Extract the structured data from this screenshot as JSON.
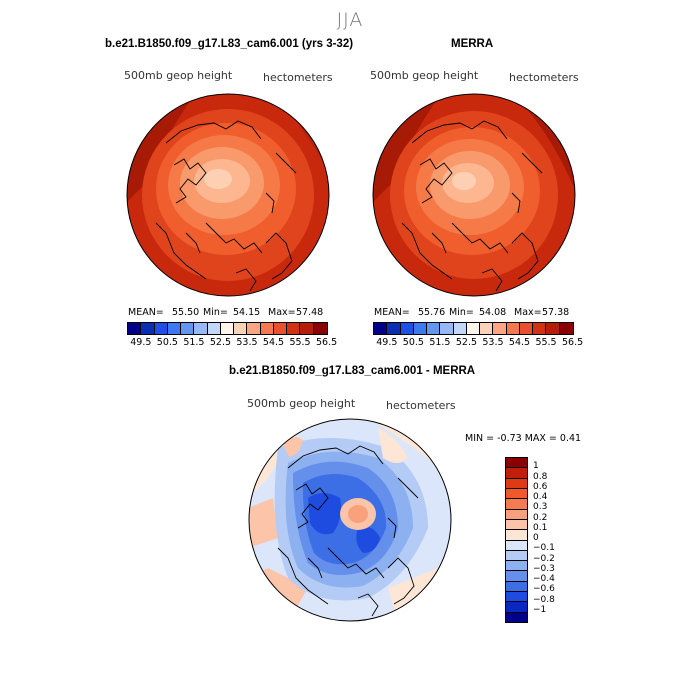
{
  "title": "JJA",
  "panels": [
    {
      "title": "b.e21.B1850.f09_g17.L83_cam6.001 (yrs 3-32)",
      "left_label": "500mb geop height",
      "right_label": "hectometers",
      "mean_label": "MEAN=",
      "mean": "55.50",
      "min_label": "Min=",
      "min": "54.15",
      "max_label": "Max=",
      "max": "57.48"
    },
    {
      "title": "MERRA",
      "left_label": "500mb geop height",
      "right_label": "hectometers",
      "mean_label": "MEAN=",
      "mean": "55.76",
      "min_label": "Min=",
      "min": "54.08",
      "max_label": "Max=",
      "max": "57.38"
    }
  ],
  "abs_colorbar": {
    "ticks": [
      "49.5",
      "50.5",
      "51.5",
      "52.5",
      "53.5",
      "54.5",
      "55.5",
      "56.5"
    ],
    "colors": [
      "#00008b",
      "#0a2fb5",
      "#1e50e6",
      "#3c78f0",
      "#6496f0",
      "#96b9f5",
      "#c3d7fa",
      "#fff5eb",
      "#fcd2b9",
      "#fba583",
      "#f57850",
      "#e9502d",
      "#d23214",
      "#b41e0a",
      "#8b0000"
    ]
  },
  "diff": {
    "title": "b.e21.B1850.f09_g17.L83_cam6.001 - MERRA",
    "left_label": "500mb geop height",
    "right_label": "hectometers",
    "stats": "MIN =  -0.73  MAX =   0.41",
    "colorbar_labels": [
      "1",
      "0.8",
      "0.6",
      "0.4",
      "0.3",
      "0.2",
      "0.1",
      "0",
      "−0.1",
      "−0.2",
      "−0.3",
      "−0.4",
      "−0.6",
      "−0.8",
      "−1"
    ],
    "colorbar_colors": [
      "#8b0000",
      "#c0200a",
      "#e03a14",
      "#f2592a",
      "#f57c50",
      "#f9a07c",
      "#fcc4a8",
      "#fde6d6",
      "#dbe6fa",
      "#b4ccf5",
      "#8cb0f0",
      "#6490ec",
      "#3c6ee6",
      "#1e4ce0",
      "#0a28c0",
      "#00008b"
    ]
  }
}
